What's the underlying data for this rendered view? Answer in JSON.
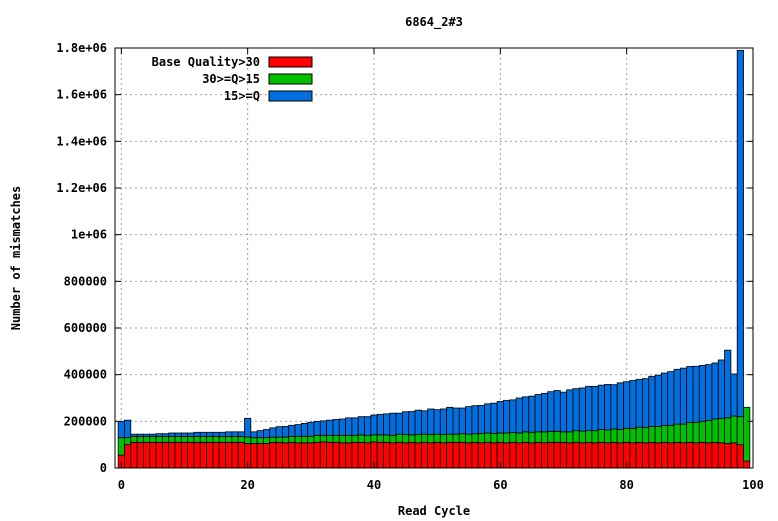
{
  "chart_data": {
    "type": "bar",
    "stacked": true,
    "title": "6864_2#3",
    "xlabel": "Read Cycle",
    "ylabel": "Number of mismatches",
    "xlim": [
      -1,
      100
    ],
    "ylim": [
      0,
      1800000
    ],
    "x_ticks": [
      0,
      20,
      40,
      60,
      80,
      100
    ],
    "y_ticks": [
      0,
      200000,
      400000,
      600000,
      800000,
      1000000,
      1200000,
      1400000,
      1600000,
      1800000
    ],
    "y_tick_labels": [
      "0",
      "200000",
      "400000",
      "600000",
      "800000",
      "1e+06",
      "1.2e+06",
      "1.4e+06",
      "1.6e+06",
      "1.8e+06"
    ],
    "grid": true,
    "legend_position": "top-left",
    "x": [
      0,
      1,
      2,
      3,
      4,
      5,
      6,
      7,
      8,
      9,
      10,
      11,
      12,
      13,
      14,
      15,
      16,
      17,
      18,
      19,
      20,
      21,
      22,
      23,
      24,
      25,
      26,
      27,
      28,
      29,
      30,
      31,
      32,
      33,
      34,
      35,
      36,
      37,
      38,
      39,
      40,
      41,
      42,
      43,
      44,
      45,
      46,
      47,
      48,
      49,
      50,
      51,
      52,
      53,
      54,
      55,
      56,
      57,
      58,
      59,
      60,
      61,
      62,
      63,
      64,
      65,
      66,
      67,
      68,
      69,
      70,
      71,
      72,
      73,
      74,
      75,
      76,
      77,
      78,
      79,
      80,
      81,
      82,
      83,
      84,
      85,
      86,
      87,
      88,
      89,
      90,
      91,
      92,
      93,
      94,
      95,
      96,
      97,
      98,
      99
    ],
    "series": [
      {
        "name": "Base Quality>30",
        "color": "#ff0000",
        "values": [
          55000,
          100000,
          110000,
          110000,
          110000,
          110000,
          110000,
          110000,
          110000,
          110000,
          110000,
          110000,
          110000,
          110000,
          110000,
          110000,
          110000,
          110000,
          110000,
          110000,
          105000,
          105000,
          105000,
          105000,
          110000,
          110000,
          108000,
          110000,
          108000,
          108000,
          108000,
          110000,
          112000,
          110000,
          110000,
          108000,
          108000,
          110000,
          110000,
          108000,
          112000,
          110000,
          110000,
          108000,
          110000,
          108000,
          110000,
          108000,
          110000,
          108000,
          110000,
          108000,
          110000,
          110000,
          110000,
          108000,
          110000,
          108000,
          110000,
          108000,
          110000,
          108000,
          110000,
          108000,
          110000,
          108000,
          110000,
          108000,
          110000,
          110000,
          110000,
          108000,
          110000,
          108000,
          110000,
          108000,
          110000,
          108000,
          110000,
          108000,
          110000,
          108000,
          110000,
          108000,
          110000,
          108000,
          110000,
          108000,
          110000,
          108000,
          110000,
          108000,
          110000,
          108000,
          110000,
          108000,
          105000,
          108000,
          100000,
          30000
        ]
      },
      {
        "name": "30>=Q>15",
        "color": "#00c000",
        "values": [
          75000,
          30000,
          25000,
          25000,
          25000,
          25000,
          25000,
          25000,
          25000,
          25000,
          25000,
          25000,
          25000,
          25000,
          25000,
          25000,
          25000,
          25000,
          25000,
          25000,
          28000,
          25000,
          25000,
          25000,
          22000,
          22000,
          25000,
          25000,
          28000,
          28000,
          28000,
          30000,
          28000,
          30000,
          30000,
          32000,
          32000,
          30000,
          32000,
          32000,
          30000,
          32000,
          32000,
          32000,
          35000,
          35000,
          32000,
          35000,
          35000,
          35000,
          35000,
          35000,
          35000,
          35000,
          37000,
          37000,
          37000,
          40000,
          40000,
          40000,
          40000,
          42000,
          42000,
          42000,
          45000,
          45000,
          45000,
          47000,
          47000,
          47000,
          45000,
          47000,
          50000,
          50000,
          50000,
          52000,
          55000,
          55000,
          57000,
          57000,
          60000,
          62000,
          65000,
          65000,
          68000,
          70000,
          72000,
          75000,
          78000,
          80000,
          85000,
          88000,
          90000,
          95000,
          100000,
          105000,
          110000,
          115000,
          120000,
          230000
        ]
      },
      {
        "name": "15>=Q",
        "color": "#0070e0",
        "values": [
          70000,
          75000,
          10000,
          10000,
          10000,
          10000,
          12000,
          12000,
          15000,
          15000,
          15000,
          15000,
          18000,
          18000,
          18000,
          18000,
          18000,
          20000,
          20000,
          20000,
          80000,
          25000,
          30000,
          35000,
          40000,
          45000,
          45000,
          48000,
          50000,
          55000,
          60000,
          60000,
          62000,
          65000,
          68000,
          70000,
          75000,
          75000,
          78000,
          80000,
          85000,
          88000,
          90000,
          95000,
          90000,
          98000,
          100000,
          105000,
          100000,
          110000,
          105000,
          110000,
          115000,
          112000,
          110000,
          118000,
          120000,
          120000,
          125000,
          130000,
          135000,
          140000,
          140000,
          150000,
          150000,
          155000,
          160000,
          165000,
          170000,
          175000,
          170000,
          180000,
          180000,
          185000,
          190000,
          190000,
          190000,
          195000,
          190000,
          200000,
          200000,
          205000,
          205000,
          210000,
          215000,
          220000,
          225000,
          230000,
          235000,
          240000,
          240000,
          240000,
          240000,
          240000,
          240000,
          250000,
          290000,
          180000,
          1570000,
          0
        ]
      }
    ]
  }
}
